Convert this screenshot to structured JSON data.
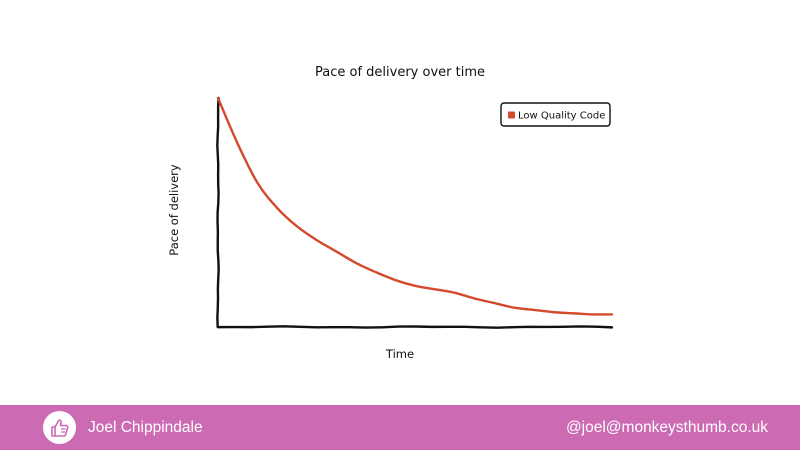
{
  "theme": {
    "footer_bg": "#cc6ab4",
    "line_color": "#d34a2c",
    "axis_color": "#111111"
  },
  "footer": {
    "name": "Joel Chippindale",
    "handle": "@joel@monkeysthumb.co.uk",
    "avatar_icon": "thumbs-up-icon"
  },
  "chart_data": {
    "type": "line",
    "title": "Pace of delivery over time",
    "xlabel": "Time",
    "ylabel": "Pace of delivery",
    "legend_position": "top-right",
    "grid": false,
    "series": [
      {
        "name": "Low Quality Code",
        "color": "#d34a2c",
        "x": [
          0,
          0.05,
          0.1,
          0.15,
          0.2,
          0.25,
          0.3,
          0.35,
          0.4,
          0.45,
          0.5,
          0.55,
          0.6,
          0.65,
          0.7,
          0.75,
          0.8,
          0.85,
          0.9,
          0.95,
          1.0
        ],
        "values": [
          1.0,
          0.8,
          0.63,
          0.52,
          0.44,
          0.38,
          0.33,
          0.28,
          0.24,
          0.205,
          0.18,
          0.165,
          0.15,
          0.125,
          0.105,
          0.085,
          0.075,
          0.065,
          0.06,
          0.055,
          0.055
        ]
      }
    ]
  }
}
